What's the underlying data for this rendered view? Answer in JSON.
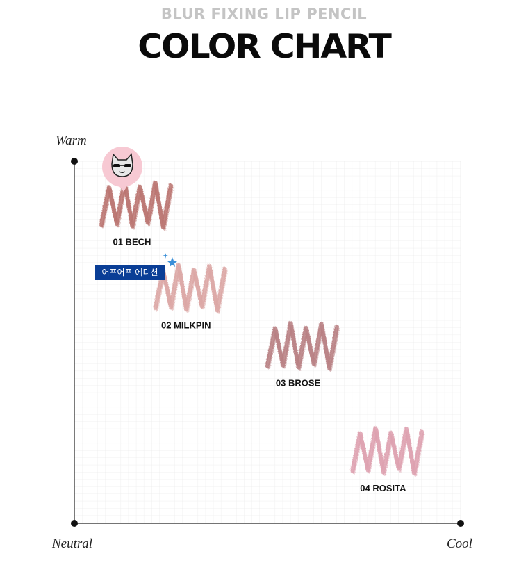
{
  "header": {
    "subtitle": "BLUR FIXING LIP PENCIL",
    "title": "COLOR CHART"
  },
  "axes": {
    "y_top_label": "Warm",
    "x_left_label": "Neutral",
    "x_right_label": "Cool"
  },
  "badge": {
    "text": "어프어프 에디션"
  },
  "icons": [
    "cat-mascot-icon",
    "sparkle-star-icon"
  ],
  "chart_data": {
    "type": "scatter",
    "title": "COLOR CHART",
    "subtitle": "BLUR FIXING LIP PENCIL",
    "xlabel": "",
    "ylabel": "",
    "x_axis_ends": [
      "Neutral",
      "Cool"
    ],
    "y_axis_end": "Warm",
    "xlim": [
      0,
      10
    ],
    "ylim": [
      0,
      10
    ],
    "grid": true,
    "points": [
      {
        "label": "01 BECH",
        "x": 1.6,
        "y": 8.8,
        "color": "#b9716d"
      },
      {
        "label": "02 MILKPIN",
        "x": 3.0,
        "y": 6.5,
        "color": "#dba5a3"
      },
      {
        "label": "03 BROSE",
        "x": 5.9,
        "y": 4.9,
        "color": "#b77d80"
      },
      {
        "label": "04 ROSITA",
        "x": 8.1,
        "y": 2.0,
        "color": "#dd9fae"
      }
    ]
  }
}
